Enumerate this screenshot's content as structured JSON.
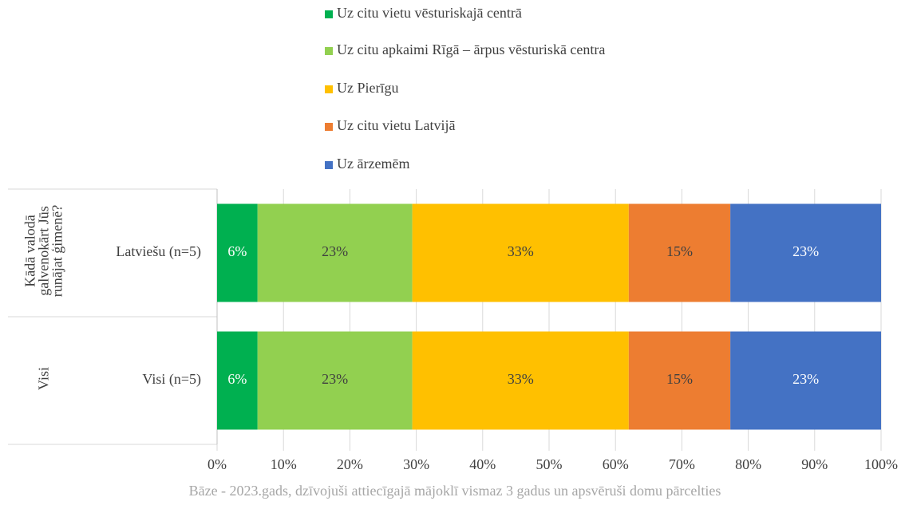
{
  "chart_data": {
    "type": "stacked-bar-horizontal",
    "categories": [
      "Latviešu (n=5)",
      "Visi (n=5)"
    ],
    "category_groups": [
      "Kādā valodā galvenokārt Jūs runājat ģimenē?",
      "Visi"
    ],
    "series": [
      {
        "name": "Uz citu vietu vēsturiskajā centrā",
        "color": "#00b050",
        "values": [
          6.1,
          6.1
        ],
        "value_labels": [
          "6%",
          "6%"
        ]
      },
      {
        "name": "Uz citu apkaimi Rīgā – ārpus vēsturiskā centra",
        "color": "#92d050",
        "values": [
          23.3,
          23.3
        ],
        "value_labels": [
          "23%",
          "23%"
        ]
      },
      {
        "name": "Uz Pierīgu",
        "color": "#ffc000",
        "values": [
          32.6,
          32.6
        ],
        "value_labels": [
          "33%",
          "33%"
        ]
      },
      {
        "name": "Uz citu vietu Latvijā",
        "color": "#ed7d31",
        "values": [
          15.3,
          15.3
        ],
        "value_labels": [
          "15%",
          "15%"
        ]
      },
      {
        "name": "Uz ārzemēm",
        "color": "#4472c4",
        "values": [
          22.7,
          22.7
        ],
        "value_labels": [
          "23%",
          "23%"
        ]
      }
    ],
    "xlim": [
      0,
      100
    ],
    "xticks": [
      {
        "value": 0,
        "label": "0%"
      },
      {
        "value": 10,
        "label": "10%"
      },
      {
        "value": 20,
        "label": "20%"
      },
      {
        "value": 30,
        "label": "30%"
      },
      {
        "value": 40,
        "label": "40%"
      },
      {
        "value": 50,
        "label": "50%"
      },
      {
        "value": 60,
        "label": "60%"
      },
      {
        "value": 70,
        "label": "70%"
      },
      {
        "value": 80,
        "label": "80%"
      },
      {
        "value": 90,
        "label": "90%"
      },
      {
        "value": 100,
        "label": "100%"
      }
    ],
    "grid": true,
    "legend": "top",
    "note": "Bāze - 2023.gads, dzīvojuši attiecīgajā mājoklī vismaz 3 gadus un apsvēruši domu pārcelties"
  }
}
